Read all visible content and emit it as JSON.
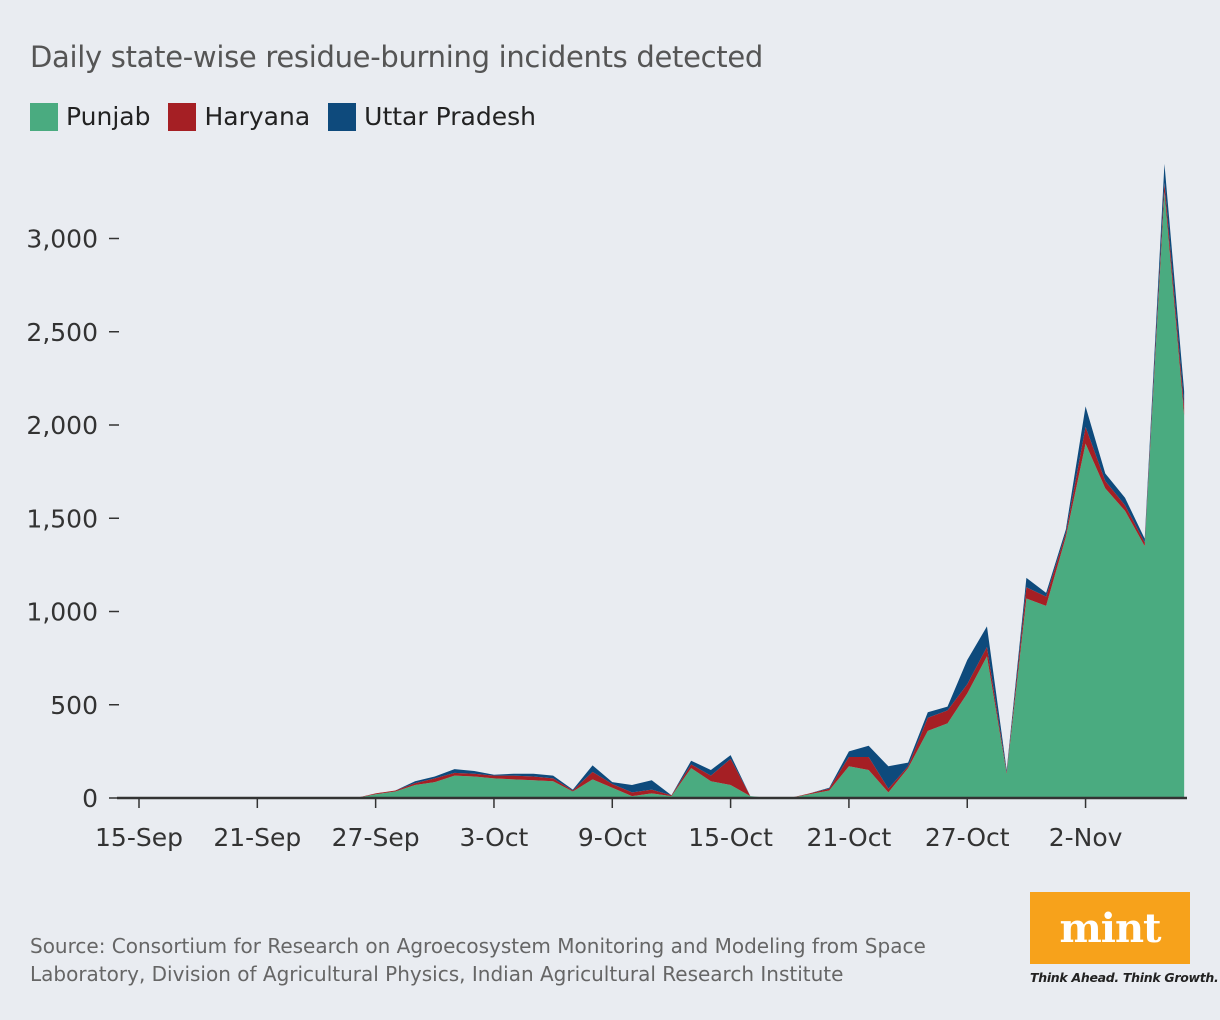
{
  "title": "Daily state-wise residue-burning incidents detected",
  "legend": [
    {
      "name": "Punjab",
      "color": "#4aab80"
    },
    {
      "name": "Haryana",
      "color": "#a51f24"
    },
    {
      "name": "Uttar Pradesh",
      "color": "#0e4a7c"
    }
  ],
  "source": "Source: Consortium for Research on Agroecosystem Monitoring and Modeling from Space Laboratory, Division of Agricultural Physics, Indian Agricultural Research Institute",
  "logo": {
    "name": "mint",
    "tagline": "Think Ahead. Think Growth."
  },
  "chart_data": {
    "type": "area",
    "stacked": true,
    "title": "Daily state-wise residue-burning incidents detected",
    "x": [
      "15-Sep",
      "16-Sep",
      "17-Sep",
      "18-Sep",
      "19-Sep",
      "20-Sep",
      "21-Sep",
      "22-Sep",
      "23-Sep",
      "24-Sep",
      "25-Sep",
      "26-Sep",
      "27-Sep",
      "28-Sep",
      "29-Sep",
      "30-Sep",
      "1-Oct",
      "2-Oct",
      "3-Oct",
      "4-Oct",
      "5-Oct",
      "6-Oct",
      "7-Oct",
      "8-Oct",
      "9-Oct",
      "10-Oct",
      "11-Oct",
      "12-Oct",
      "13-Oct",
      "14-Oct",
      "15-Oct",
      "16-Oct",
      "17-Oct",
      "18-Oct",
      "19-Oct",
      "20-Oct",
      "21-Oct",
      "22-Oct",
      "23-Oct",
      "24-Oct",
      "25-Oct",
      "26-Oct",
      "27-Oct",
      "28-Oct",
      "29-Oct",
      "30-Oct",
      "31-Oct",
      "1-Nov",
      "2-Nov",
      "3-Nov",
      "4-Nov",
      "5-Nov",
      "6-Nov",
      "7-Nov"
    ],
    "x_ticks": [
      "15-Sep",
      "21-Sep",
      "27-Sep",
      "3-Oct",
      "9-Oct",
      "15-Oct",
      "21-Oct",
      "27-Oct",
      "2-Nov"
    ],
    "y_ticks": [
      0,
      500,
      1000,
      1500,
      2000,
      2500,
      3000
    ],
    "y_tick_labels": [
      "0",
      "500",
      "1,000",
      "1,500",
      "2,000",
      "2,500",
      "3,000"
    ],
    "ylim": [
      0,
      3400
    ],
    "xlabel": "",
    "ylabel": "",
    "legend_position": "top-left",
    "grid": false,
    "series": [
      {
        "name": "Punjab",
        "color": "#4aab80",
        "values": [
          0,
          0,
          0,
          0,
          0,
          0,
          0,
          0,
          0,
          0,
          0,
          0,
          20,
          35,
          70,
          85,
          120,
          115,
          105,
          100,
          95,
          90,
          35,
          100,
          55,
          10,
          25,
          10,
          160,
          90,
          70,
          10,
          0,
          0,
          20,
          40,
          170,
          150,
          30,
          160,
          360,
          400,
          560,
          760,
          130,
          1070,
          1030,
          1400,
          1900,
          1660,
          1540,
          1350,
          3250,
          2050
        ]
      },
      {
        "name": "Haryana",
        "color": "#a51f24",
        "values": [
          0,
          0,
          0,
          0,
          0,
          0,
          0,
          0,
          0,
          0,
          0,
          0,
          5,
          5,
          10,
          20,
          15,
          15,
          15,
          20,
          20,
          15,
          5,
          40,
          20,
          20,
          20,
          5,
          20,
          30,
          140,
          0,
          0,
          0,
          5,
          10,
          50,
          70,
          20,
          10,
          70,
          70,
          50,
          50,
          10,
          60,
          50,
          20,
          90,
          40,
          30,
          20,
          50,
          50
        ]
      },
      {
        "name": "Uttar Pradesh",
        "color": "#0e4a7c",
        "values": [
          0,
          0,
          0,
          0,
          0,
          0,
          0,
          0,
          0,
          0,
          0,
          0,
          0,
          0,
          10,
          10,
          20,
          15,
          5,
          10,
          15,
          15,
          5,
          35,
          10,
          40,
          50,
          0,
          20,
          30,
          20,
          0,
          0,
          0,
          0,
          5,
          30,
          60,
          120,
          20,
          30,
          20,
          130,
          110,
          10,
          50,
          20,
          20,
          110,
          40,
          40,
          20,
          100,
          80
        ]
      }
    ]
  }
}
